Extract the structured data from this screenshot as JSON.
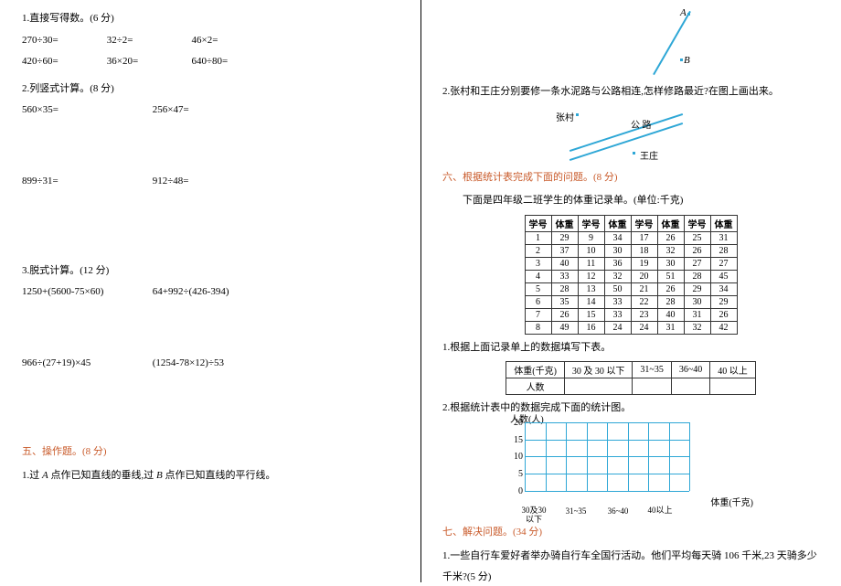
{
  "left": {
    "q1": {
      "title": "1.直接写得数。(6 分)",
      "r1a": "270÷30=",
      "r1b": "32÷2=",
      "r1c": "46×2=",
      "r2a": "420÷60=",
      "r2b": "36×20=",
      "r2c": "640÷80="
    },
    "q2": {
      "title": "2.列竖式计算。(8 分)",
      "a": "560×35=",
      "b": "256×47=",
      "c": "899÷31=",
      "d": "912÷48="
    },
    "q3": {
      "title": "3.脱式计算。(12 分)",
      "a": "1250+(5600-75×60)",
      "b": "64+992÷(426-394)",
      "c": "966÷(27+19)×45",
      "d": "(1254-78×12)÷53"
    },
    "sec5": {
      "title": "五、操作题。(8 分)",
      "q1a": "1.过 ",
      "q1b": " 点作已知直线的垂线,过 ",
      "q1c": " 点作已知直线的平行线。",
      "a": "A",
      "b": "B"
    }
  },
  "right": {
    "ab": {
      "a": "A",
      "b": "B"
    },
    "q2": {
      "text": "2.张村和王庄分别要修一条水泥路与公路相连,怎样修路最近?在图上画出来。",
      "zc": "张村",
      "wz": "王庄",
      "gl": "公    路"
    },
    "sec6": {
      "title": "六、根据统计表完成下面的问题。(8 分)",
      "intro": "下面是四年级二班学生的体重记录单。(单位:千克)",
      "headers": [
        "学号",
        "体重",
        "学号",
        "体重",
        "学号",
        "体重",
        "学号",
        "体重"
      ],
      "rows": [
        [
          "1",
          "29",
          "9",
          "34",
          "17",
          "26",
          "25",
          "31"
        ],
        [
          "2",
          "37",
          "10",
          "30",
          "18",
          "32",
          "26",
          "28"
        ],
        [
          "3",
          "40",
          "11",
          "36",
          "19",
          "30",
          "27",
          "27"
        ],
        [
          "4",
          "33",
          "12",
          "32",
          "20",
          "51",
          "28",
          "45"
        ],
        [
          "5",
          "28",
          "13",
          "50",
          "21",
          "26",
          "29",
          "34"
        ],
        [
          "6",
          "35",
          "14",
          "33",
          "22",
          "28",
          "30",
          "29"
        ],
        [
          "7",
          "26",
          "15",
          "33",
          "23",
          "40",
          "31",
          "26"
        ],
        [
          "8",
          "49",
          "16",
          "24",
          "24",
          "31",
          "32",
          "42"
        ]
      ],
      "q1": "1.根据上面记录单上的数据填写下表。",
      "range_h1": "体重(千克)",
      "range_h2": "人数",
      "ranges": [
        "30 及 30 以下",
        "31~35",
        "36~40",
        "40 以上"
      ],
      "q2": "2.根据统计表中的数据完成下面的统计图。"
    },
    "chart": {
      "y_label": "人数(人)",
      "x_label": "体重(千克)",
      "yticks": [
        "20",
        "15",
        "10",
        "5",
        "0"
      ],
      "xticks": [
        "30及30",
        "31~35",
        "36~40",
        "40以上"
      ],
      "xsub": "以下"
    },
    "sec7": {
      "title": "七、解决问题。(34 分)",
      "q1a": "1.一些自行车爱好者举办骑自行车全国行活动。他们平均每天骑 106 千米,23 天骑多少",
      "q1b": "千米?(5 分)"
    }
  }
}
